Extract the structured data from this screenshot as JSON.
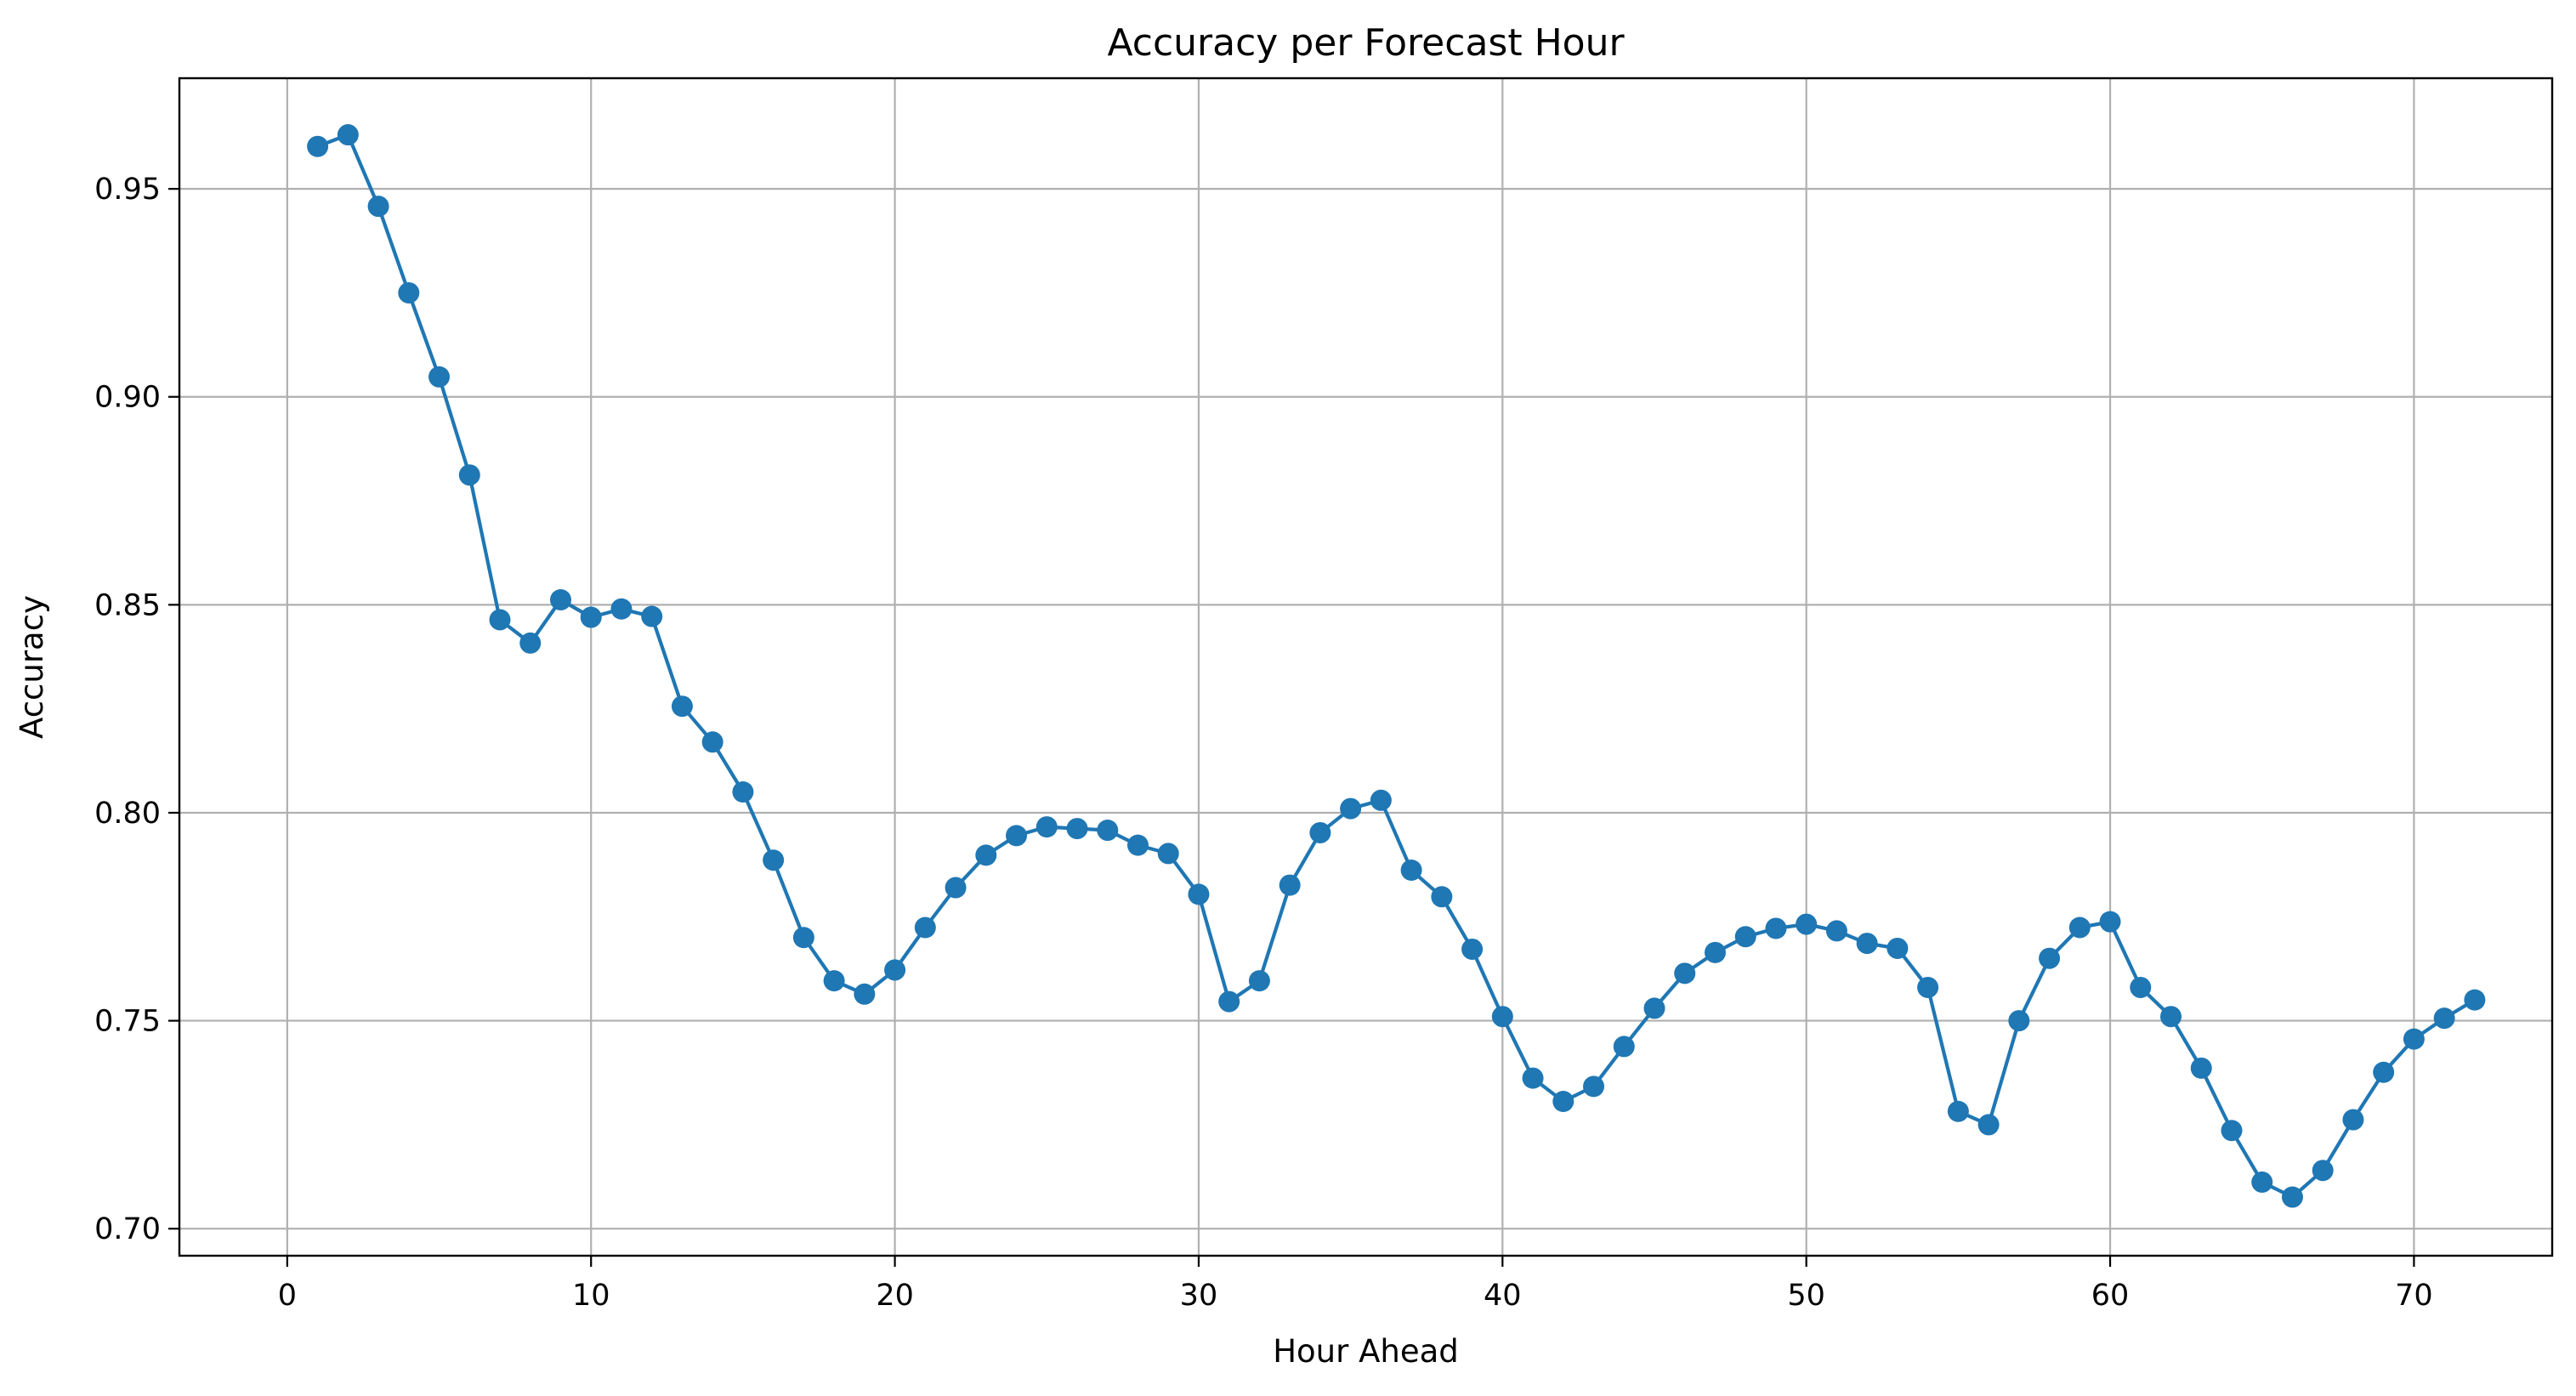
{
  "chart_data": {
    "type": "line",
    "title": "Accuracy per Forecast Hour",
    "xlabel": "Hour Ahead",
    "ylabel": "Accuracy",
    "xlim": [
      -3.55,
      74.55
    ],
    "ylim": [
      0.6935,
      0.9766
    ],
    "xticks": [
      0,
      10,
      20,
      30,
      40,
      50,
      60,
      70
    ],
    "xtick_labels": [
      "0",
      "10",
      "20",
      "30",
      "40",
      "50",
      "60",
      "70"
    ],
    "yticks": [
      0.7,
      0.75,
      0.8,
      0.85,
      0.9,
      0.95
    ],
    "ytick_labels": [
      "0.70",
      "0.75",
      "0.80",
      "0.85",
      "0.90",
      "0.95"
    ],
    "grid": true,
    "legend": false,
    "series": [
      {
        "color": "#1f77b4",
        "marker": "circle",
        "x": [
          1,
          2,
          3,
          4,
          5,
          6,
          7,
          8,
          9,
          10,
          11,
          12,
          13,
          14,
          15,
          16,
          17,
          18,
          19,
          20,
          21,
          22,
          23,
          24,
          25,
          26,
          27,
          28,
          29,
          30,
          31,
          32,
          33,
          34,
          35,
          36,
          37,
          38,
          39,
          40,
          41,
          42,
          43,
          44,
          45,
          46,
          47,
          48,
          49,
          50,
          51,
          52,
          53,
          54,
          55,
          56,
          57,
          58,
          59,
          60,
          61,
          62,
          63,
          64,
          65,
          66,
          67,
          68,
          69,
          70,
          71,
          72
        ],
        "values": [
          0.9602,
          0.963,
          0.9458,
          0.925,
          0.9048,
          0.8812,
          0.8464,
          0.8408,
          0.8512,
          0.847,
          0.849,
          0.8472,
          0.8256,
          0.817,
          0.805,
          0.7886,
          0.77,
          0.7596,
          0.7564,
          0.7622,
          0.7724,
          0.782,
          0.7898,
          0.7945,
          0.7966,
          0.7962,
          0.7958,
          0.7922,
          0.7902,
          0.7804,
          0.7546,
          0.7596,
          0.7826,
          0.7952,
          0.801,
          0.803,
          0.7862,
          0.7798,
          0.7672,
          0.751,
          0.7362,
          0.7306,
          0.7342,
          0.7438,
          0.753,
          0.7614,
          0.7664,
          0.7702,
          0.7722,
          0.7732,
          0.7716,
          0.7686,
          0.7674,
          0.758,
          0.7282,
          0.725,
          0.75,
          0.765,
          0.7724,
          0.7738,
          0.758,
          0.751,
          0.7386,
          0.7236,
          0.7112,
          0.7076,
          0.714,
          0.7262,
          0.7376,
          0.7456,
          0.7506,
          0.755
        ]
      }
    ]
  }
}
